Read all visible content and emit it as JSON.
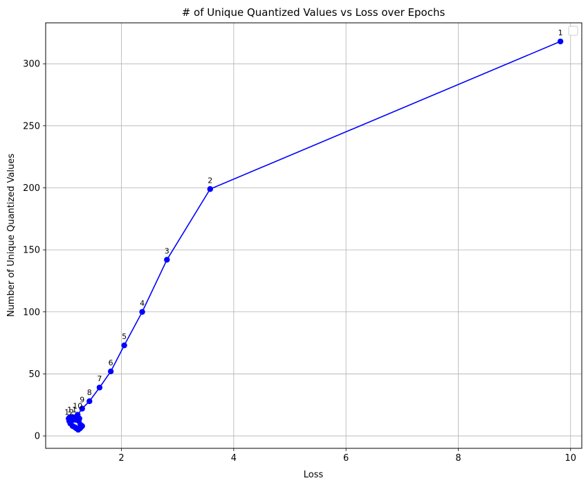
{
  "chart_data": {
    "type": "line",
    "title": "# of Unique Quantized Values vs Loss over Epochs",
    "xlabel": "Loss",
    "ylabel": "Number of Unique Quantized Values",
    "xlim": [
      0.65,
      10.2
    ],
    "ylim": [
      -10,
      333
    ],
    "x_ticks": [
      2,
      4,
      6,
      8,
      10
    ],
    "y_ticks": [
      0,
      50,
      100,
      150,
      200,
      250,
      300
    ],
    "grid": true,
    "legend": "top-right (empty)",
    "series": [
      {
        "color": "#0000ff",
        "marker": "circle",
        "points": [
          {
            "x": 9.82,
            "y": 318,
            "label": "1"
          },
          {
            "x": 3.58,
            "y": 199,
            "label": "2"
          },
          {
            "x": 2.81,
            "y": 142,
            "label": "3"
          },
          {
            "x": 2.37,
            "y": 100,
            "label": "4"
          },
          {
            "x": 2.05,
            "y": 73,
            "label": "5"
          },
          {
            "x": 1.81,
            "y": 52,
            "label": "6"
          },
          {
            "x": 1.61,
            "y": 39,
            "label": "7"
          },
          {
            "x": 1.43,
            "y": 28,
            "label": "8"
          },
          {
            "x": 1.3,
            "y": 22,
            "label": "9"
          },
          {
            "x": 1.22,
            "y": 17,
            "label": "10"
          },
          {
            "x": 1.12,
            "y": 14,
            "label": "11"
          },
          {
            "x": 1.07,
            "y": 12,
            "label": "12"
          },
          {
            "x": 1.09,
            "y": 10,
            "label": ""
          },
          {
            "x": 1.13,
            "y": 8,
            "label": ""
          },
          {
            "x": 1.17,
            "y": 7,
            "label": ""
          },
          {
            "x": 1.2,
            "y": 6,
            "label": ""
          },
          {
            "x": 1.23,
            "y": 5,
            "label": ""
          },
          {
            "x": 1.26,
            "y": 6,
            "label": ""
          },
          {
            "x": 1.28,
            "y": 7,
            "label": ""
          },
          {
            "x": 1.3,
            "y": 8,
            "label": ""
          },
          {
            "x": 1.27,
            "y": 9,
            "label": ""
          },
          {
            "x": 1.24,
            "y": 12,
            "label": ""
          },
          {
            "x": 1.21,
            "y": 14,
            "label": ""
          },
          {
            "x": 1.18,
            "y": 15,
            "label": ""
          },
          {
            "x": 1.15,
            "y": 13,
            "label": ""
          },
          {
            "x": 1.1,
            "y": 13,
            "label": ""
          },
          {
            "x": 1.06,
            "y": 14,
            "label": ""
          },
          {
            "x": 1.19,
            "y": 13,
            "label": ""
          },
          {
            "x": 1.25,
            "y": 14,
            "label": ""
          },
          {
            "x": 1.22,
            "y": 15,
            "label": ""
          },
          {
            "x": 1.14,
            "y": 15,
            "label": ""
          },
          {
            "x": 1.08,
            "y": 15,
            "label": ""
          },
          {
            "x": 1.2,
            "y": 14,
            "label": ""
          },
          {
            "x": 1.16,
            "y": 14,
            "label": ""
          },
          {
            "x": 1.12,
            "y": 14,
            "label": ""
          }
        ]
      }
    ]
  }
}
